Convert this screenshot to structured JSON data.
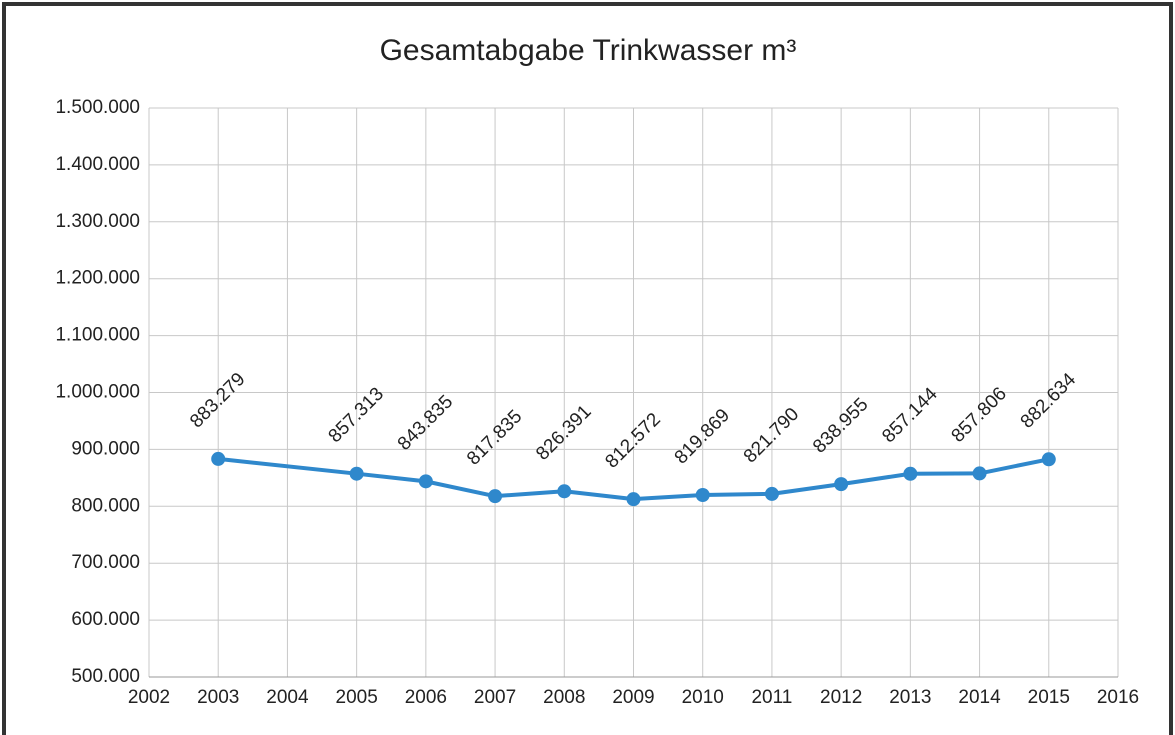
{
  "chart_data": {
    "type": "line",
    "title": "Gesamtabgabe Trinkwasser m³",
    "x": [
      2003,
      2005,
      2006,
      2007,
      2008,
      2009,
      2010,
      2011,
      2012,
      2013,
      2014,
      2015
    ],
    "series": [
      {
        "name": "Gesamtabgabe",
        "color": "#2f88cc",
        "values": [
          883279,
          857313,
          843835,
          817835,
          826391,
          812572,
          819869,
          821790,
          838955,
          857144,
          857806,
          882634
        ],
        "value_labels": [
          "883.279",
          "857.313",
          "843.835",
          "817.835",
          "826.391",
          "812.572",
          "819.869",
          "821.790",
          "838.955",
          "857.144",
          "857.806",
          "882.634"
        ]
      }
    ],
    "xlim": [
      2002,
      2016
    ],
    "xticks": [
      2002,
      2003,
      2004,
      2005,
      2006,
      2007,
      2008,
      2009,
      2010,
      2011,
      2012,
      2013,
      2014,
      2015,
      2016
    ],
    "ylim": [
      500000,
      1500000
    ],
    "yticks": [
      {
        "value": 500000,
        "label": "500.000"
      },
      {
        "value": 600000,
        "label": "600.000"
      },
      {
        "value": 700000,
        "label": "700.000"
      },
      {
        "value": 800000,
        "label": "800.000"
      },
      {
        "value": 900000,
        "label": "900.000"
      },
      {
        "value": 1000000,
        "label": "1.000.000"
      },
      {
        "value": 1100000,
        "label": "1.100.000"
      },
      {
        "value": 1200000,
        "label": "1.200.000"
      },
      {
        "value": 1300000,
        "label": "1.300.000"
      },
      {
        "value": 1400000,
        "label": "1.400.000"
      },
      {
        "value": 1500000,
        "label": "1.500.000"
      }
    ],
    "grid": true
  }
}
